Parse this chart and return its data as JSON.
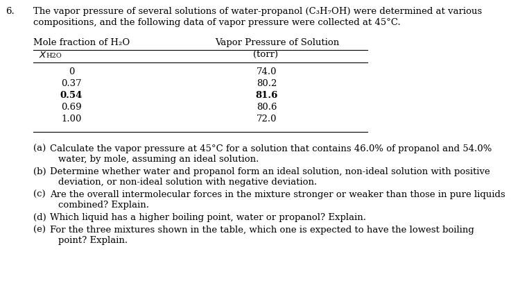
{
  "problem_number": "6.",
  "intro_line1": "The vapor pressure of several solutions of water-propanol (C₃H₇OH) were determined at various",
  "intro_line2": "compositions, and the following data of vapor pressure were collected at 45°C.",
  "col1_header_line1": "Mole fraction of H₂O",
  "col2_header_line1": "Vapor Pressure of Solution",
  "col2_header_line2": "(torr)",
  "table_data": [
    [
      "0",
      "74.0",
      false
    ],
    [
      "0.37",
      "80.2",
      false
    ],
    [
      "0.54",
      "81.6",
      true
    ],
    [
      "0.69",
      "80.6",
      false
    ],
    [
      "1.00",
      "72.0",
      false
    ]
  ],
  "questions": [
    [
      "(a)",
      "Calculate the vapor pressure at 45°C for a solution that contains 46.0% of propanol and 54.0%",
      "water, by mole, assuming an ideal solution."
    ],
    [
      "(b)",
      "Determine whether water and propanol form an ideal solution, non-ideal solution with positive",
      "deviation, or non-ideal solution with negative deviation."
    ],
    [
      "(c)",
      "Are the overall intermolecular forces in the mixture stronger or weaker than those in pure liquids",
      "combined? Explain."
    ],
    [
      "(d)",
      "Which liquid has a higher boiling point, water or propanol? Explain.",
      ""
    ],
    [
      "(e)",
      "For the three mixtures shown in the table, which one is expected to have the lowest boiling",
      "point? Explain."
    ]
  ],
  "bg_color": "#ffffff",
  "text_color": "#000000",
  "font_size": 9.5
}
